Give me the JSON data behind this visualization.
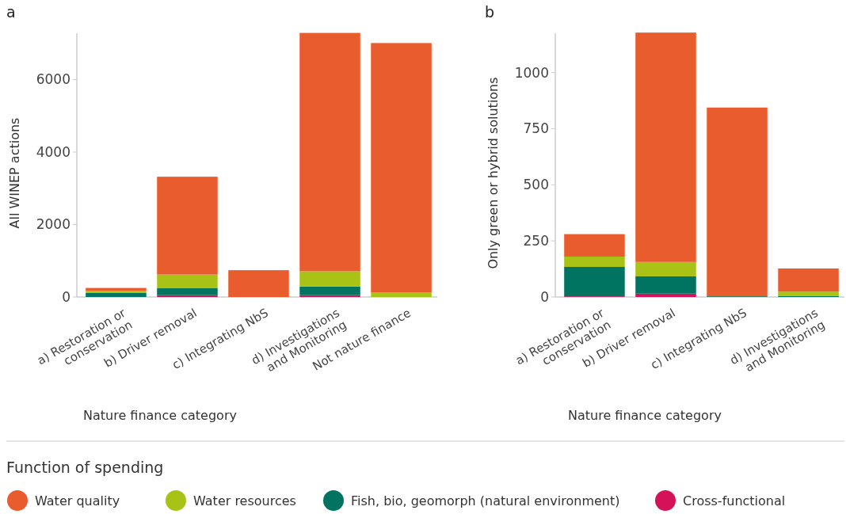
{
  "chart_data": [
    {
      "type": "bar",
      "title": "a",
      "stacked": true,
      "xlabel": "Nature finance category",
      "ylabel": "All WINEP actions",
      "legend": "bottom",
      "legend_title": "Function of spending",
      "categories": [
        "a) Restoration or\nconservation",
        "b) Driver removal",
        "c) Integrating NbS",
        "d) Investigations\nand Monitoring",
        "Not nature finance"
      ],
      "ylim": [
        0,
        7280
      ],
      "yticks": [
        0,
        2000,
        4000,
        6000
      ],
      "series": [
        {
          "name": "Cross-functional",
          "color": "#d41159",
          "values": [
            null,
            50,
            0,
            50,
            0
          ]
        },
        {
          "name": "Fish, bio, geomorph (natural environment)",
          "color": "#007461",
          "values": [
            120,
            190,
            null,
            240,
            0
          ]
        },
        {
          "name": "Water resources",
          "color": "#a8c216",
          "values": [
            50,
            380,
            0,
            420,
            130
          ]
        },
        {
          "name": "Water quality",
          "color": "#e95c2d",
          "values": [
            80,
            2700,
            740,
            6580,
            6880
          ]
        }
      ]
    },
    {
      "type": "bar",
      "title": "b",
      "stacked": true,
      "xlabel": "Nature finance category",
      "ylabel": "Only green or hybrid solutions",
      "categories": [
        "a) Restoration or\nconservation",
        "b) Driver removal",
        "c) Integrating NbS",
        "d) Investigations\nand Monitoring"
      ],
      "ylim": [
        0,
        1175
      ],
      "yticks": [
        0,
        250,
        500,
        750,
        1000
      ],
      "series": [
        {
          "color": "#d41159",
          "values": [
            3,
            15,
            0,
            0
          ]
        },
        {
          "color": "#007461",
          "values": [
            131,
            77,
            3,
            5
          ]
        },
        {
          "color": "#a8c216",
          "values": [
            46,
            64,
            0,
            19
          ]
        },
        {
          "color": "#e95c2d",
          "values": [
            100,
            1022,
            841,
            103
          ]
        }
      ]
    }
  ]
}
